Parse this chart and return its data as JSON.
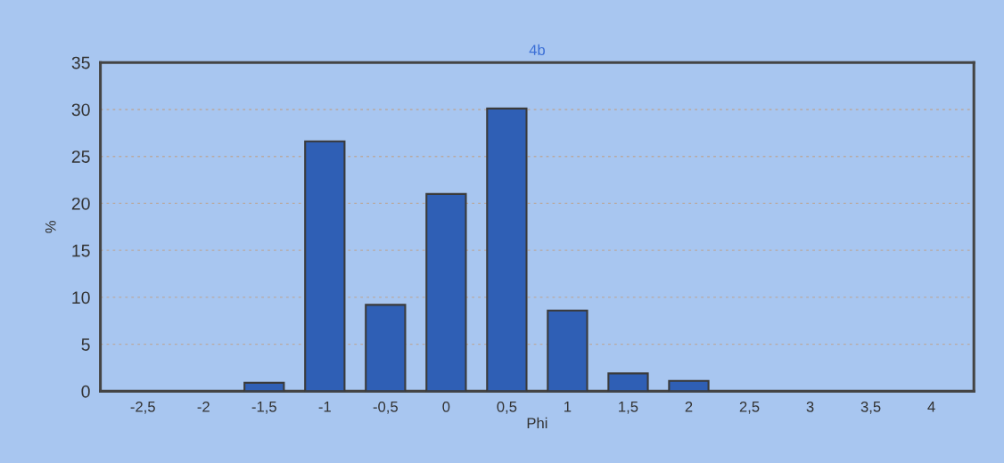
{
  "chart_data": {
    "type": "bar",
    "title": "4b",
    "xlabel": "Phi",
    "ylabel": "%",
    "categories": [
      "-2,5",
      "-2",
      "-1,5",
      "-1",
      "-0,5",
      "0",
      "0,5",
      "1",
      "1,5",
      "2",
      "2,5",
      "3",
      "3,5",
      "4"
    ],
    "values": [
      0,
      0,
      0.9,
      26.6,
      9.2,
      21.0,
      30.1,
      8.6,
      1.9,
      1.1,
      0,
      0,
      0,
      0
    ],
    "color": "#2f5fb5",
    "ylim": [
      0,
      35
    ],
    "yticks": [
      0,
      5,
      10,
      15,
      20,
      25,
      30,
      35
    ],
    "grid": "y"
  }
}
